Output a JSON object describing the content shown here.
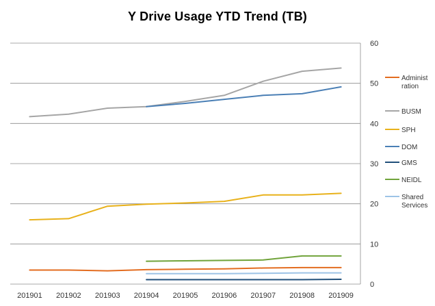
{
  "chart_data": {
    "type": "line",
    "title": "Y Drive Usage YTD Trend (TB)",
    "xlabel": "",
    "ylabel": "",
    "categories": [
      "201901",
      "201902",
      "201903",
      "201904",
      "201905",
      "201906",
      "201907",
      "201908",
      "201909"
    ],
    "ylim": [
      0,
      60
    ],
    "yticks": [
      0,
      10,
      20,
      30,
      40,
      50,
      60
    ],
    "y_axis_side": "right",
    "grid": true,
    "legend_position": "right",
    "series": [
      {
        "name": "Administ ration",
        "legend_lines": [
          "Administ",
          "ration"
        ],
        "color": "#e36c1f",
        "values": [
          3.5,
          3.5,
          3.3,
          3.6,
          3.7,
          3.8,
          4.0,
          4.1,
          4.1
        ]
      },
      {
        "name": "BUSM",
        "legend_lines": [
          "BUSM"
        ],
        "color": "#a5a5a5",
        "values": [
          41.7,
          42.3,
          43.8,
          44.2,
          45.5,
          47.0,
          50.5,
          53.0,
          53.8
        ]
      },
      {
        "name": "SPH",
        "legend_lines": [
          "SPH"
        ],
        "color": "#e8b11a",
        "values": [
          16.0,
          16.3,
          19.4,
          19.9,
          20.2,
          20.6,
          22.2,
          22.2,
          22.6
        ]
      },
      {
        "name": "DOM",
        "legend_lines": [
          "DOM"
        ],
        "color": "#4a7fb5",
        "values": [
          null,
          null,
          null,
          44.2,
          45.0,
          46.0,
          47.0,
          47.4,
          49.1
        ]
      },
      {
        "name": "GMS",
        "legend_lines": [
          "GMS"
        ],
        "color": "#1f4e79",
        "values": [
          null,
          null,
          null,
          1.1,
          1.1,
          1.1,
          1.1,
          1.1,
          1.2
        ]
      },
      {
        "name": "NEIDL",
        "legend_lines": [
          "NEIDL"
        ],
        "color": "#70a33a",
        "values": [
          null,
          null,
          null,
          5.7,
          5.8,
          5.9,
          6.0,
          7.0,
          7.0
        ]
      },
      {
        "name": "Shared Services",
        "legend_lines": [
          "Shared",
          "Services"
        ],
        "color": "#9dc3e6",
        "values": [
          null,
          null,
          null,
          2.6,
          2.6,
          2.6,
          2.7,
          2.8,
          2.8
        ]
      }
    ]
  }
}
